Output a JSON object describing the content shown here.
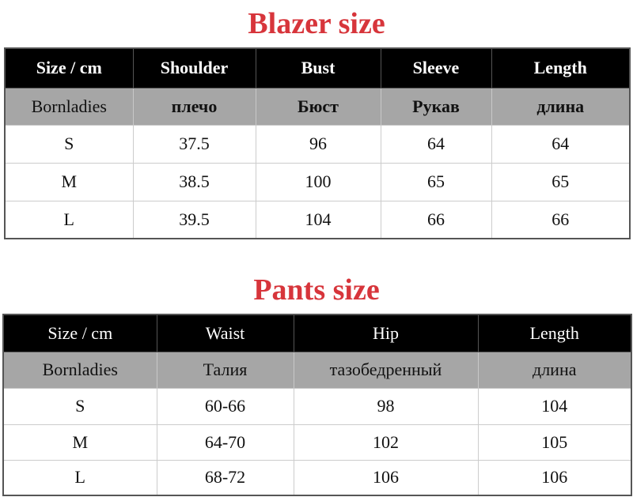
{
  "blazer": {
    "title": "Blazer size",
    "headers": [
      "Size / cm",
      "Shoulder",
      "Bust",
      "Sleeve",
      "Length"
    ],
    "subheaders": [
      "Bornladies",
      "плечо",
      "Бюст",
      "Рукав",
      "длина"
    ],
    "rows": [
      [
        "S",
        "37.5",
        "96",
        "64",
        "64"
      ],
      [
        "M",
        "38.5",
        "100",
        "65",
        "65"
      ],
      [
        "L",
        "39.5",
        "104",
        "66",
        "66"
      ]
    ]
  },
  "pants": {
    "title": "Pants size",
    "headers": [
      "Size / cm",
      "Waist",
      "Hip",
      "Length"
    ],
    "subheaders": [
      "Bornladies",
      "Талия",
      "тазобедренный",
      "длина"
    ],
    "rows": [
      [
        "S",
        "60-66",
        "98",
        "104"
      ],
      [
        "M",
        "64-70",
        "102",
        "105"
      ],
      [
        "L",
        "68-72",
        "106",
        "106"
      ]
    ]
  },
  "colors": {
    "title": "#d7353b",
    "header_bg": "#000000",
    "subheader_bg": "#a6a6a6"
  }
}
